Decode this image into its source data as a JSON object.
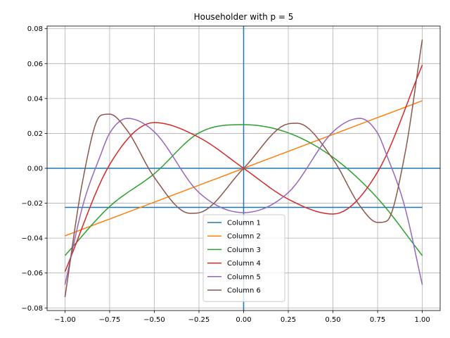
{
  "chart_data": {
    "type": "line",
    "title": "Householder with p = 5",
    "xlabel": "",
    "ylabel": "",
    "xlim": [
      -1.1,
      1.1
    ],
    "ylim": [
      -0.0815,
      0.0815
    ],
    "grid": true,
    "legend_position": "lower-center",
    "x_ticks": [
      -1.0,
      -0.75,
      -0.5,
      -0.25,
      0.0,
      0.25,
      0.5,
      0.75,
      1.0
    ],
    "x_tick_labels": [
      "−1.00",
      "−0.75",
      "−0.50",
      "−0.25",
      "0.00",
      "0.25",
      "0.50",
      "0.75",
      "1.00"
    ],
    "y_ticks": [
      -0.08,
      -0.06,
      -0.04,
      -0.02,
      0.0,
      0.02,
      0.04,
      0.06,
      0.08
    ],
    "y_tick_labels": [
      "−0.08",
      "−0.06",
      "−0.04",
      "−0.02",
      "0.00",
      "0.02",
      "0.04",
      "0.06",
      "0.08"
    ],
    "series": [
      {
        "name": "Column 1",
        "color": "#1f77b4",
        "x": [
          -1.0,
          1.0
        ],
        "y": [
          -0.0224,
          -0.0224
        ]
      },
      {
        "name": "Column 2",
        "color": "#ff7f0e",
        "x": [
          -1.0,
          -0.5,
          0.0,
          0.5,
          1.0
        ],
        "y": [
          -0.0387,
          -0.0194,
          0.0,
          0.0194,
          0.0387
        ]
      },
      {
        "name": "Column 3",
        "color": "#2ca02c",
        "x": [
          -1.0,
          -0.75,
          -0.5,
          -0.25,
          0.0,
          0.25,
          0.5,
          0.75,
          1.0
        ],
        "y": [
          -0.05,
          -0.0219,
          -0.0031,
          0.0203,
          0.025,
          0.0203,
          0.0063,
          -0.0172,
          -0.05
        ]
      },
      {
        "name": "Column 4",
        "color": "#d62728",
        "x": [
          -1.0,
          -0.75,
          -0.5,
          -0.25,
          0.0,
          0.25,
          0.5,
          0.75,
          1.0
        ],
        "y": [
          -0.0592,
          0.0021,
          0.0262,
          0.0177,
          0.0,
          -0.0177,
          -0.0262,
          -0.0021,
          0.0592
        ]
      },
      {
        "name": "Column 5",
        "color": "#9467bd",
        "x": [
          -1.0,
          -0.9,
          -0.8,
          -0.75,
          -0.65,
          -0.5,
          -0.25,
          0.0,
          0.25,
          0.5,
          0.65,
          0.75,
          0.8,
          0.9,
          1.0
        ],
        "y": [
          -0.0667,
          -0.0213,
          0.0078,
          0.0201,
          0.0286,
          0.0209,
          -0.0139,
          -0.0254,
          -0.0139,
          0.0209,
          0.0286,
          0.0201,
          0.0078,
          -0.0213,
          -0.0667
        ]
      },
      {
        "name": "Column 6",
        "color": "#8c564b",
        "x": [
          -1.0,
          -0.9,
          -0.8,
          -0.75,
          -0.65,
          -0.5,
          -0.3,
          -0.25,
          0.0,
          0.25,
          0.3,
          0.5,
          0.65,
          0.75,
          0.8,
          0.9,
          1.0
        ],
        "y": [
          -0.0738,
          -0.0067,
          0.0303,
          0.031,
          0.0214,
          -0.0052,
          -0.0258,
          -0.0255,
          0.0,
          0.0255,
          0.0258,
          0.0052,
          -0.0214,
          -0.031,
          -0.0303,
          0.0067,
          0.0738
        ]
      }
    ],
    "reference_lines": [
      {
        "orientation": "horizontal",
        "value": 0.0,
        "color": "#1f77b4"
      },
      {
        "orientation": "vertical",
        "value": 0.0,
        "color": "#1f77b4"
      }
    ]
  }
}
